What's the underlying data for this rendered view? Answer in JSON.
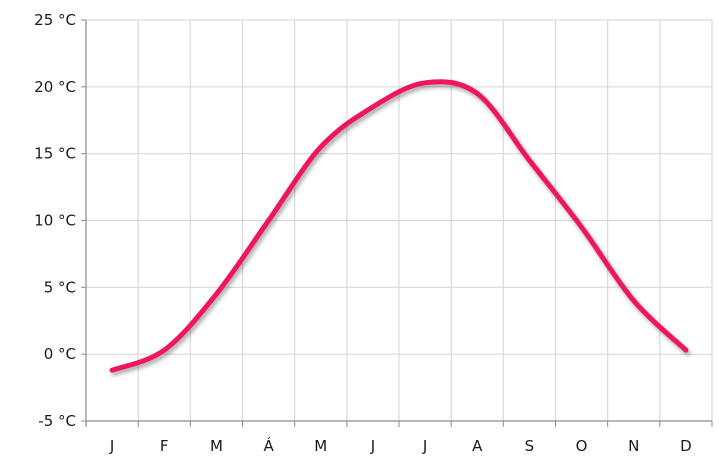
{
  "chart_data": {
    "type": "line",
    "title": "",
    "xlabel": "",
    "ylabel": "",
    "categories": [
      "J",
      "F",
      "M",
      "Á",
      "M",
      "J",
      "J",
      "A",
      "S",
      "O",
      "N",
      "D"
    ],
    "series": [
      {
        "values": [
          -1.2,
          0.3,
          4.5,
          10.0,
          15.5,
          18.5,
          20.3,
          19.5,
          14.5,
          9.5,
          4.0,
          0.3
        ],
        "color": "#f0135d"
      }
    ],
    "y_ticks": [
      {
        "value": -5,
        "label": "-5 °C"
      },
      {
        "value": 0,
        "label": "0 °C"
      },
      {
        "value": 5,
        "label": "5 °C"
      },
      {
        "value": 10,
        "label": "10 °C"
      },
      {
        "value": 15,
        "label": "15 °C"
      },
      {
        "value": 20,
        "label": "20 °C"
      },
      {
        "value": 25,
        "label": "25 °C"
      }
    ],
    "ylim": [
      -5,
      25
    ],
    "grid": true,
    "legend": "none",
    "colors": {
      "grid": "#d9d9d9",
      "axis": "#8c8c8c",
      "text": "#1a1a1a"
    }
  }
}
